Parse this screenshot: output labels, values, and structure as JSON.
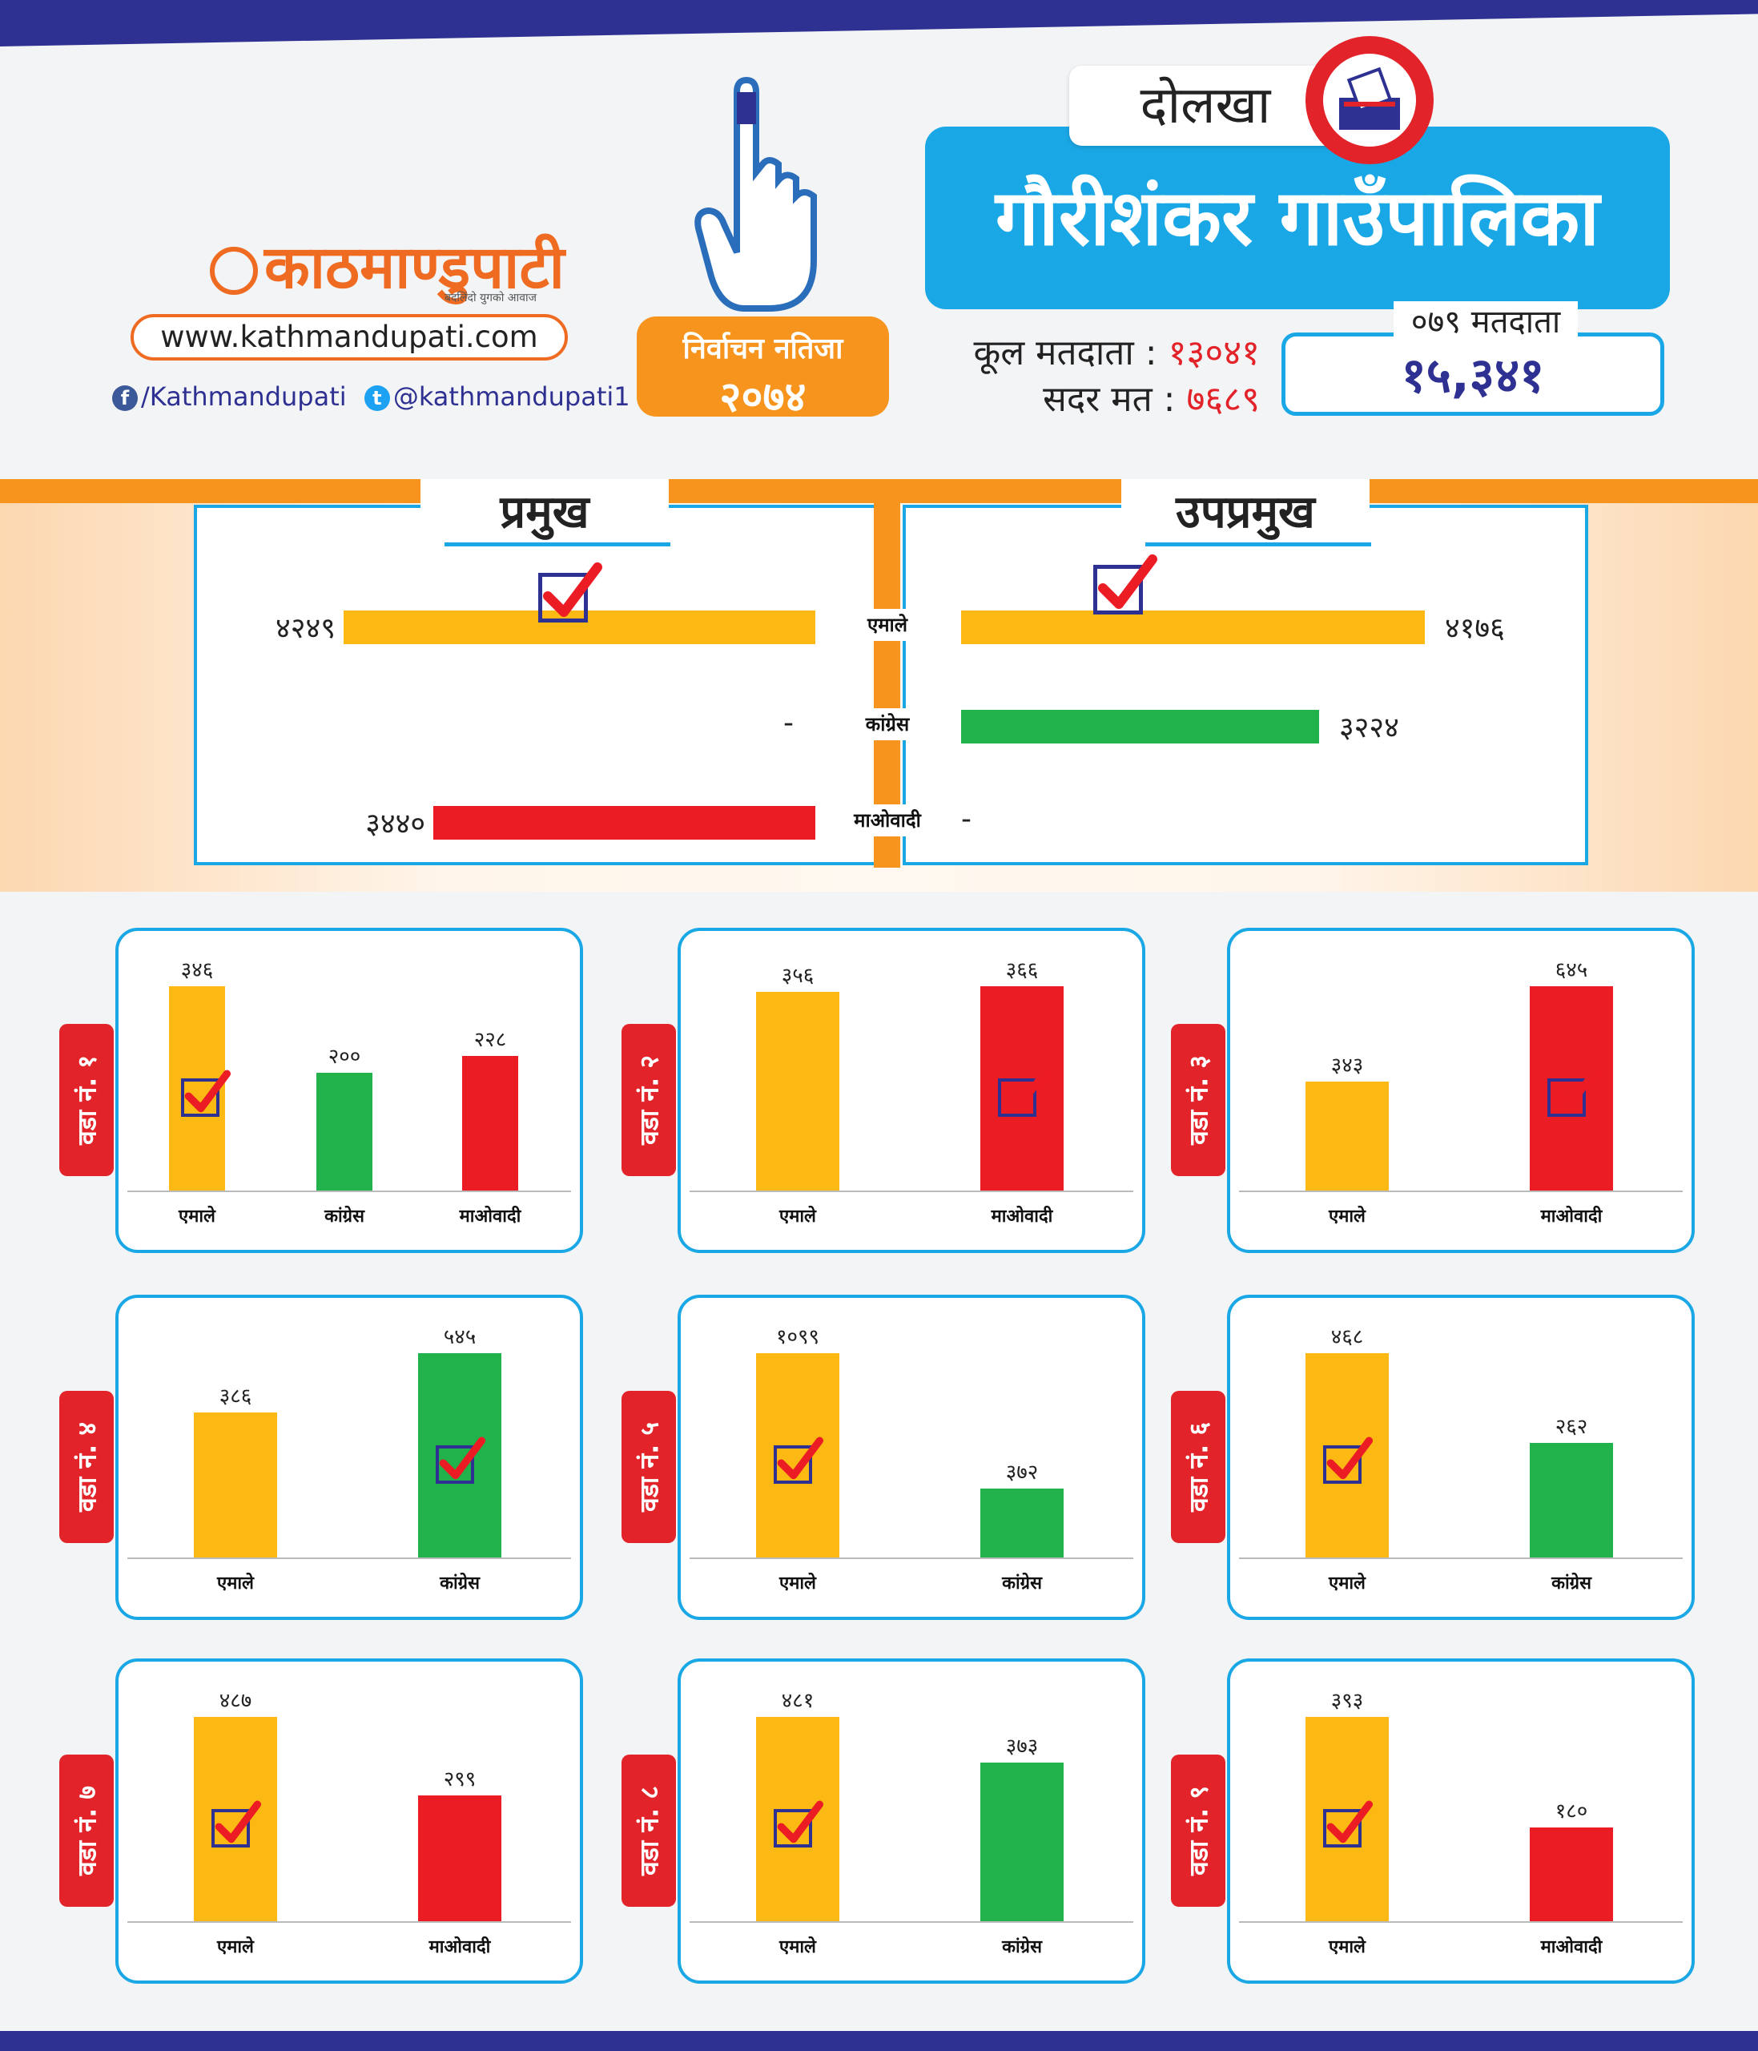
{
  "brand": {
    "name": "काठमाण्डुपाटी",
    "tagline": "बदलिंदो युगको आवाज",
    "url": "www.kathmandupati.com",
    "facebook": "/Kathmandupati",
    "twitter": "@kathmandupati1",
    "color": "#ee6b21"
  },
  "election": {
    "badge_line1": "निर्वाचन नतिजा",
    "badge_line2": "२०७४",
    "district": "दोलखा",
    "municipality": "गौरीशंकर गाउँपालिका",
    "total_voters_label": "कूल मतदाता :",
    "total_voters": "१३०४१",
    "valid_votes_label": "सदर मत :",
    "valid_votes": "७६८९",
    "voters_079_label": "०७९ मतदाता",
    "voters_079": "१५,३४१"
  },
  "colors": {
    "uml": "#fdb913",
    "congress": "#21b24b",
    "maoist": "#ec1c24",
    "accent": "#1aa7e6",
    "orange": "#f7941d"
  },
  "chart_data": [
    {
      "type": "bar",
      "orientation": "horizontal",
      "title": "प्रमुख",
      "categories": [
        "एमाले",
        "कांग्रेस",
        "माओवादी"
      ],
      "values": [
        4249,
        null,
        3440
      ],
      "value_labels": [
        "४२४९",
        "-",
        "३४४०"
      ],
      "winner": "एमाले"
    },
    {
      "type": "bar",
      "orientation": "horizontal",
      "title": "उपप्रमुख",
      "categories": [
        "एमाले",
        "कांग्रेस",
        "माओवादी"
      ],
      "values": [
        4176,
        3224,
        null
      ],
      "value_labels": [
        "४१७६",
        "३२२४",
        "-"
      ],
      "winner": "एमाले"
    }
  ],
  "wards": [
    {
      "label": "वडा नं. १",
      "parties": [
        "एमाले",
        "कांग्रेस",
        "माओवादी"
      ],
      "values": [
        346,
        200,
        228
      ],
      "value_labels": [
        "३४६",
        "२००",
        "२२८"
      ],
      "winner": 0
    },
    {
      "label": "वडा नं. २",
      "parties": [
        "एमाले",
        "माओवादी"
      ],
      "values": [
        356,
        366
      ],
      "value_labels": [
        "३५६",
        "३६६"
      ],
      "winner": 1
    },
    {
      "label": "वडा नं. ३",
      "parties": [
        "एमाले",
        "माओवादी"
      ],
      "values": [
        343,
        645
      ],
      "value_labels": [
        "३४३",
        "६४५"
      ],
      "winner": 1
    },
    {
      "label": "वडा नं. ४",
      "parties": [
        "एमाले",
        "कांग्रेस"
      ],
      "values": [
        386,
        545
      ],
      "value_labels": [
        "३८६",
        "५४५"
      ],
      "winner": 1
    },
    {
      "label": "वडा नं. ५",
      "parties": [
        "एमाले",
        "कांग्रेस"
      ],
      "values": [
        1099,
        372
      ],
      "value_labels": [
        "१०९९",
        "३७२"
      ],
      "winner": 0
    },
    {
      "label": "वडा नं. ६",
      "parties": [
        "एमाले",
        "कांग्रेस"
      ],
      "values": [
        468,
        262
      ],
      "value_labels": [
        "४६८",
        "२६२"
      ],
      "winner": 0
    },
    {
      "label": "वडा नं. ७",
      "parties": [
        "एमाले",
        "माओवादी"
      ],
      "values": [
        487,
        299
      ],
      "value_labels": [
        "४८७",
        "२९९"
      ],
      "winner": 0
    },
    {
      "label": "वडा नं. ८",
      "parties": [
        "एमाले",
        "कांग्रेस"
      ],
      "values": [
        481,
        373
      ],
      "value_labels": [
        "४८१",
        "३७३"
      ],
      "winner": 0
    },
    {
      "label": "वडा नं. ९",
      "parties": [
        "एमाले",
        "माओवादी"
      ],
      "values": [
        393,
        180
      ],
      "value_labels": [
        "३९३",
        "१८०"
      ],
      "winner": 0
    }
  ]
}
